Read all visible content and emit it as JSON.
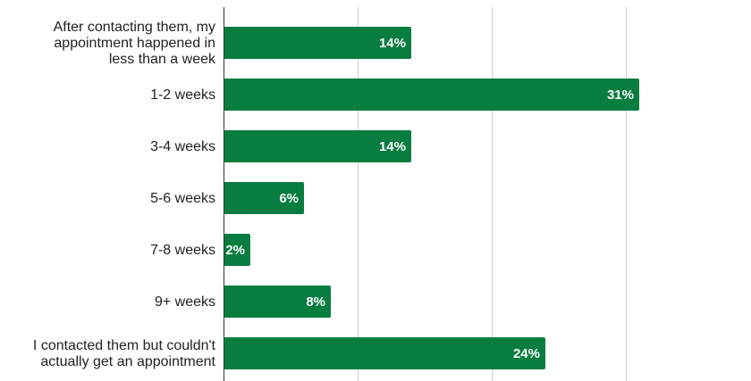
{
  "chart_data": {
    "type": "bar",
    "orientation": "horizontal",
    "categories": [
      [
        "After contacting them, my",
        "appointment happened in",
        "less than a week"
      ],
      [
        "1-2 weeks"
      ],
      [
        "3-4 weeks"
      ],
      [
        "5-6 weeks"
      ],
      [
        "7-8 weeks"
      ],
      [
        "9+ weeks"
      ],
      [
        "I contacted them but couldn't",
        "actually get an appointment"
      ]
    ],
    "values": [
      14,
      31,
      14,
      6,
      2,
      8,
      24
    ],
    "value_labels": [
      "14%",
      "31%",
      "14%",
      "6%",
      "2%",
      "8%",
      "24%"
    ],
    "xlim": [
      0,
      40
    ],
    "grid": true,
    "title": "",
    "xlabel": "",
    "ylabel": ""
  },
  "colors": {
    "bar": "#077d3f",
    "grid": "#cccccc",
    "axis": "#333333",
    "label_text": "#222222",
    "value_text": "#ffffff"
  }
}
